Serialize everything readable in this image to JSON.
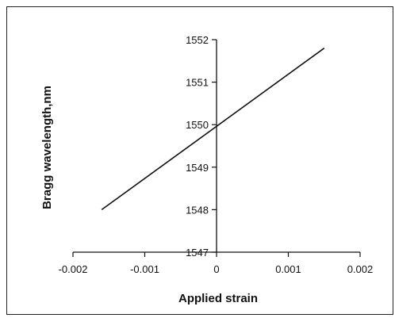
{
  "chart_data": {
    "type": "line",
    "title": "",
    "xlabel": "Applied strain",
    "ylabel": "Bragg wavelength,nm",
    "xlim": [
      -0.002,
      0.002
    ],
    "ylim": [
      1547,
      1552
    ],
    "xticks": [
      -0.002,
      -0.001,
      0,
      0.001,
      0.002
    ],
    "xtick_labels": [
      "-0.002",
      "-0.001",
      "0",
      "0.001",
      "0.002"
    ],
    "yticks": [
      1547,
      1548,
      1549,
      1550,
      1551,
      1552
    ],
    "ytick_labels": [
      "1547",
      "1548",
      "1549",
      "1550",
      "1551",
      "1552"
    ],
    "grid": false,
    "legend": "none",
    "axes_cross_at": [
      0,
      1547
    ],
    "line_color": "#111111",
    "series": [
      {
        "x": [
          -0.0016,
          0.0015
        ],
        "y": [
          1548.0,
          1551.8
        ]
      }
    ]
  }
}
